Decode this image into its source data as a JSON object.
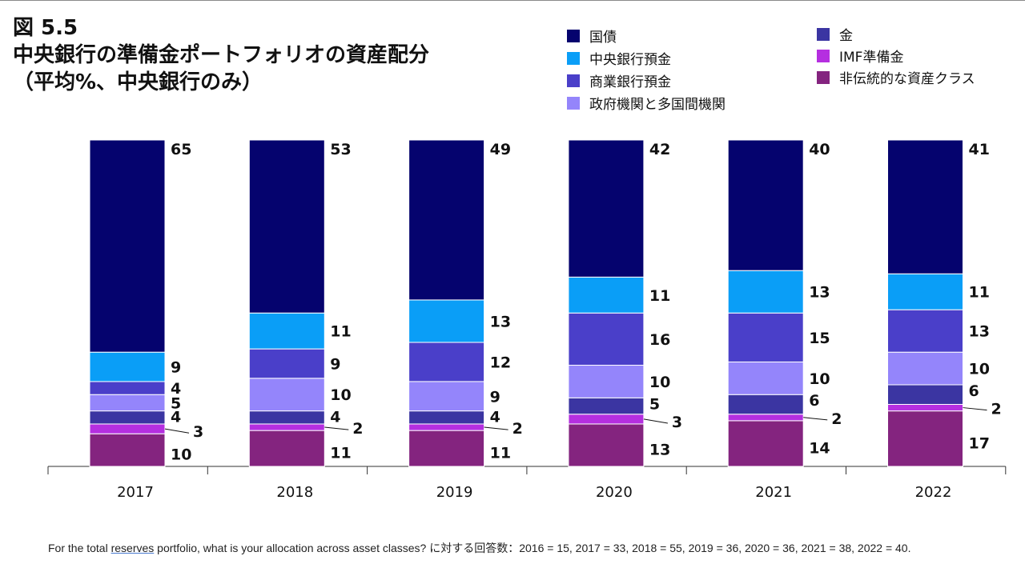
{
  "title": {
    "figure_label": "図 5.5",
    "line1": "中央銀行の準備金ポートフォリオの資産配分",
    "line2": "（平均%、中央銀行のみ）"
  },
  "colors": {
    "国債": "#05036e",
    "中央銀行預金": "#0a9ef7",
    "商業銀行預金": "#4a3fc9",
    "政府機関と多国間機関": "#9485fb",
    "金": "#3b35a2",
    "IMF準備金": "#b52fe0",
    "非伝統的な資産クラス": "#84247f"
  },
  "chart_data": {
    "type": "bar",
    "stacked": true,
    "categories": [
      "2017",
      "2018",
      "2019",
      "2020",
      "2021",
      "2022"
    ],
    "series": [
      {
        "name": "非伝統的な資産クラス",
        "values": [
          10,
          11,
          11,
          13,
          14,
          17
        ]
      },
      {
        "name": "IMF準備金",
        "values": [
          3,
          2,
          2,
          3,
          2,
          2
        ]
      },
      {
        "name": "金",
        "values": [
          4,
          4,
          4,
          5,
          6,
          6
        ]
      },
      {
        "name": "政府機関と多国間機関",
        "values": [
          5,
          10,
          9,
          10,
          10,
          10
        ]
      },
      {
        "name": "商業銀行預金",
        "values": [
          4,
          9,
          12,
          16,
          15,
          13
        ]
      },
      {
        "name": "中央銀行預金",
        "values": [
          9,
          11,
          13,
          11,
          13,
          11
        ]
      },
      {
        "name": "国債",
        "values": [
          65,
          53,
          49,
          42,
          40,
          41
        ]
      }
    ],
    "legend_order": [
      "国債",
      "中央銀行預金",
      "商業銀行預金",
      "政府機関と多国間機関",
      "金",
      "IMF準備金",
      "非伝統的な資産クラス"
    ],
    "legend_placement": "top-right"
  },
  "footnote": {
    "pre": "For the total ",
    "underlined": "reserves",
    "post": " portfolio, what is your allocation across asset classes? に対する回答数：2016 = 15, 2017 = 33, 2018 = 55, 2019 = 36, 2020 = 36, 2021 = 38, 2022 = 40."
  }
}
